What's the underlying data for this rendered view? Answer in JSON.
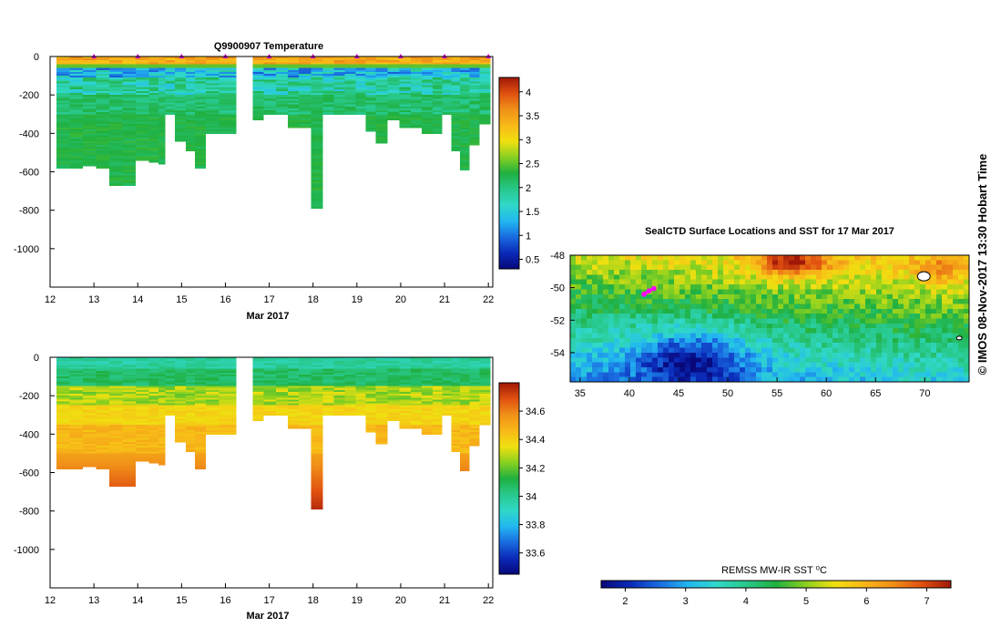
{
  "credit": "© IMOS 08-Nov-2017 13:30 Hobart Time",
  "colormap": [
    "#08087a",
    "#0a2ab8",
    "#1a6be0",
    "#22b8f0",
    "#30d8c8",
    "#28c88a",
    "#20b040",
    "#88d020",
    "#f0e010",
    "#f8b818",
    "#f09018",
    "#e05010",
    "#a01808"
  ],
  "profiles": {
    "x_label_date": "Mar 2017",
    "x_ticks": [
      "12",
      "13",
      "14",
      "15",
      "16",
      "17",
      "18",
      "19",
      "20",
      "21",
      "22"
    ],
    "x_range": [
      12,
      22.1
    ],
    "y_range": [
      0,
      -1200
    ],
    "y_ticks": [
      "0",
      "-200",
      "-400",
      "-600",
      "-800",
      "-1000"
    ],
    "profile_times": [
      12.3,
      12.6,
      12.9,
      13.2,
      13.5,
      13.8,
      14.1,
      14.4,
      14.55,
      14.7,
      15.0,
      15.2,
      15.4,
      15.7,
      16.0,
      16.5,
      16.75,
      17.0,
      17.3,
      17.55,
      17.8,
      18.1,
      18.35,
      18.6,
      18.85,
      19.1,
      19.3,
      19.55,
      19.85,
      20.1,
      20.35,
      20.6,
      20.85,
      21.05,
      21.25,
      21.45,
      21.7,
      21.9
    ],
    "profile_depths": [
      580,
      580,
      570,
      580,
      670,
      670,
      540,
      550,
      560,
      300,
      440,
      490,
      580,
      400,
      400,
      0,
      330,
      300,
      300,
      370,
      370,
      790,
      300,
      300,
      300,
      300,
      390,
      450,
      330,
      370,
      370,
      400,
      400,
      300,
      490,
      590,
      460,
      350
    ]
  },
  "chart_data": [
    {
      "type": "heatmap",
      "title": "Q9900907  Temperature",
      "xlabel": "Mar 2017",
      "ylabel": "",
      "ylim": [
        -1200,
        0
      ],
      "xlim": [
        12,
        22.1
      ],
      "x_ticks": [
        12,
        13,
        14,
        15,
        16,
        17,
        18,
        19,
        20,
        21,
        22
      ],
      "y_ticks": [
        0,
        -200,
        -400,
        -600,
        -800,
        -1000
      ],
      "colorbar": {
        "range": [
          0.3,
          4.3
        ],
        "ticks": [
          "0.5",
          "1",
          "1.5",
          "2",
          "2.5",
          "3",
          "3.5",
          "4"
        ],
        "tick_values": [
          0.5,
          1,
          1.5,
          2,
          2.5,
          3,
          3.5,
          4
        ]
      },
      "surface_marker_times": [
        13,
        14,
        15,
        16,
        17,
        18,
        19,
        20,
        21,
        22
      ]
    },
    {
      "type": "heatmap",
      "title": "",
      "xlabel": "Mar 2017",
      "ylabel": "",
      "ylim": [
        -1200,
        0
      ],
      "xlim": [
        12,
        22.1
      ],
      "x_ticks": [
        12,
        13,
        14,
        15,
        16,
        17,
        18,
        19,
        20,
        21,
        22
      ],
      "y_ticks": [
        0,
        -200,
        -400,
        -600,
        -800,
        -1000
      ],
      "colorbar": {
        "range": [
          33.45,
          34.8
        ],
        "ticks": [
          "33.6",
          "33.8",
          "34",
          "34.2",
          "34.4",
          "34.6"
        ],
        "tick_values": [
          33.6,
          33.8,
          34,
          34.2,
          34.4,
          34.6
        ]
      }
    },
    {
      "type": "heatmap",
      "title": "SealCTD Surface Locations and SST for 17 Mar 2017",
      "xlabel": "",
      "ylabel": "",
      "xlim": [
        34,
        74.5
      ],
      "ylim": [
        -55.8,
        -48
      ],
      "x_ticks": [
        "35",
        "40",
        "45",
        "50",
        "55",
        "60",
        "65",
        "70"
      ],
      "x_tick_values": [
        35,
        40,
        45,
        50,
        55,
        60,
        65,
        70
      ],
      "y_ticks": [
        "-48",
        "-50",
        "-52",
        "-54"
      ],
      "y_tick_values": [
        -48,
        -50,
        -52,
        -54
      ],
      "colorbar": {
        "label": "REMSS MW-IR SST ⁰C",
        "range": [
          1.6,
          7.4
        ],
        "ticks": [
          "2",
          "3",
          "4",
          "5",
          "6",
          "7"
        ],
        "tick_values": [
          2,
          3,
          4,
          5,
          6,
          7
        ]
      },
      "seal_track": [
        [
          41.5,
          -50.4
        ],
        [
          42.0,
          -50.2
        ],
        [
          42.5,
          -50.05
        ]
      ]
    }
  ]
}
